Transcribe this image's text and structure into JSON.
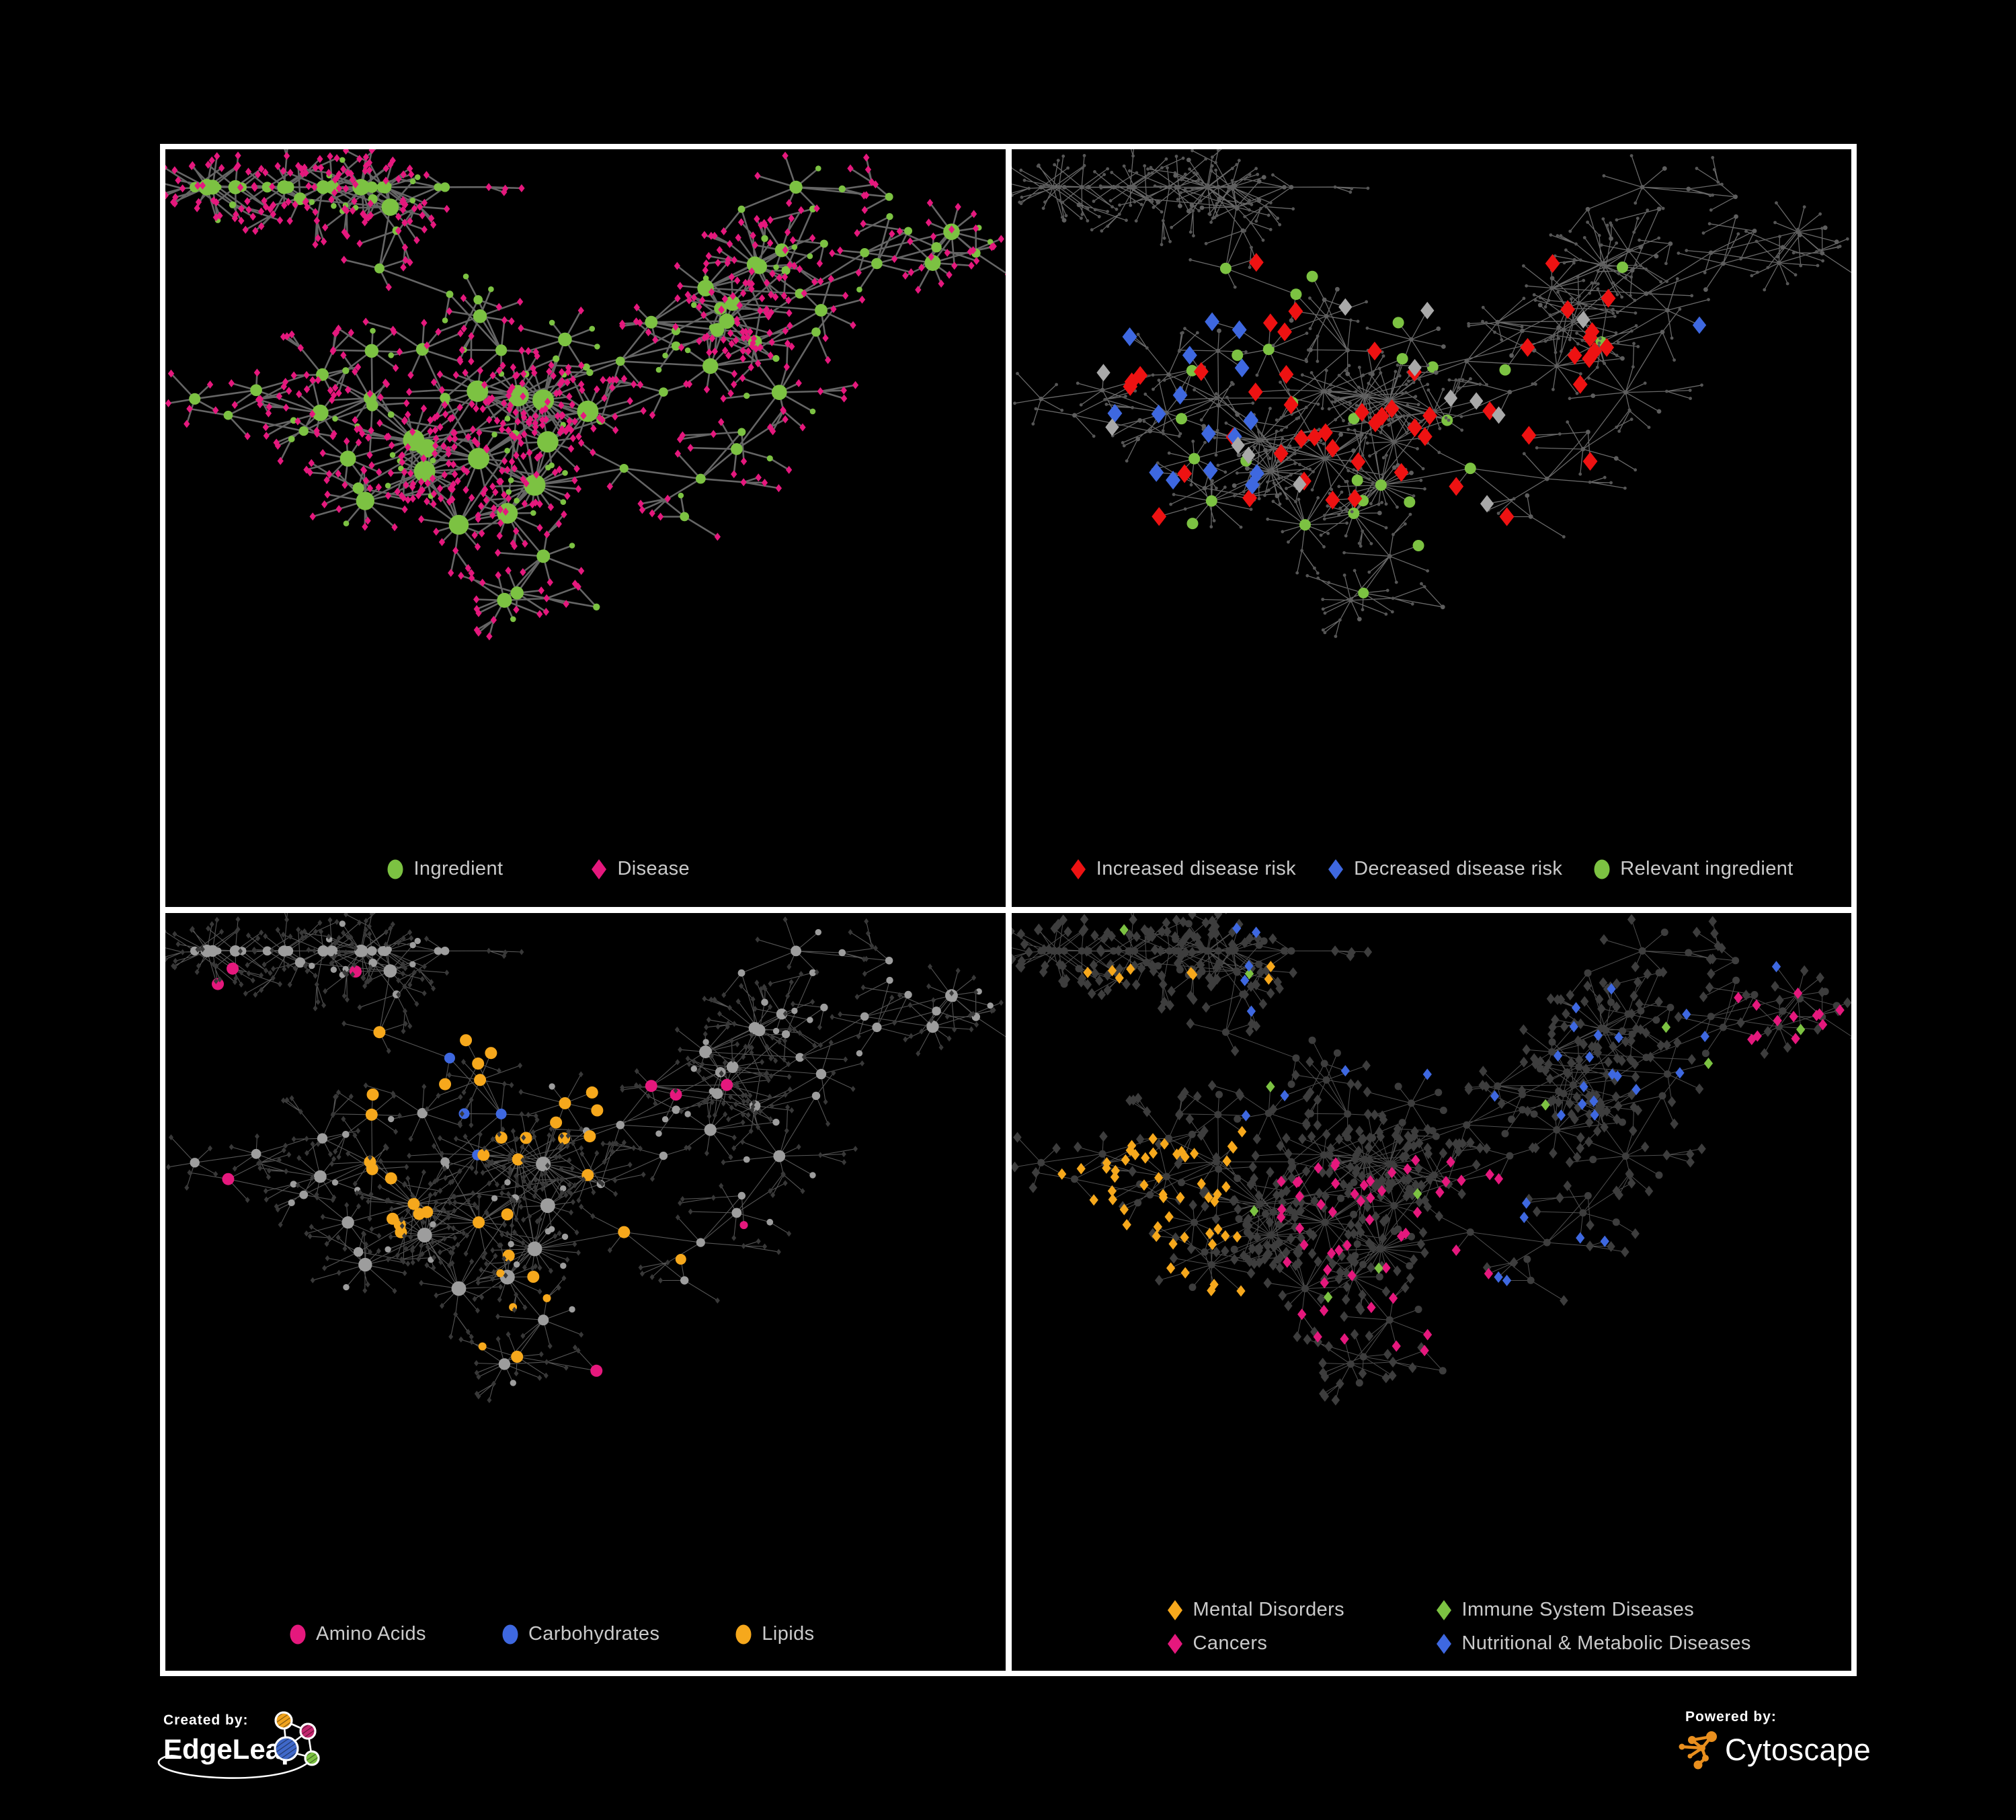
{
  "colors": {
    "green": "#7CC242",
    "magenta": "#E5187D",
    "red": "#EE1212",
    "blue": "#3E68E0",
    "orange": "#F6A81C",
    "gray_node": "#9D9D9D",
    "dim_node": "#5E5E5E",
    "dark_node": "#3D3D3D",
    "dark_diamond": "#383838",
    "gray_diamond": "#A9A9A9",
    "legend_text": "#CACACA",
    "frame_white": "#FFFFFF",
    "el_orange": "#F0A31D",
    "el_pink": "#C2266E",
    "el_blue": "#3F68C9",
    "el_green": "#7CC242",
    "cyto_orange": "#E98F1E"
  },
  "network": {
    "seed": 20,
    "core": [
      0.37,
      0.4
    ],
    "coreRadius": 0.13,
    "coreHubs": 13,
    "coreLeavesMin": 9,
    "coreLeavesMax": 24,
    "coreExtraEdges": 9,
    "tendrilHubs": 92,
    "stepMin": 0.045,
    "stepMax": 0.09,
    "bounds": [
      0.035,
      0.05,
      0.965,
      0.83
    ],
    "leafMin": 0.022,
    "leafMax": 0.045,
    "subBranchP": 0.15,
    "ingredientLeafP": 0.12
  },
  "panels": [
    {
      "name": "ingredient-disease-network",
      "edge": {
        "c": "#6A6A6A",
        "w": 2.6,
        "o": 0.95
      },
      "ingredient": {
        "s": "circle",
        "c": "green",
        "z": "hub"
      },
      "disease": {
        "s": "diamond",
        "c": "magenta",
        "z": 6
      },
      "rules": [],
      "legend": [
        {
          "label": "Ingredient",
          "shape": "circle",
          "color": "green"
        },
        {
          "label": "Disease",
          "shape": "diamond",
          "color": "magenta"
        }
      ]
    },
    {
      "name": "disease-risk-network",
      "edge": {
        "c": "#7A7A7A",
        "w": 1.3,
        "o": 0.85
      },
      "ingredient": {
        "s": "circle",
        "c": "#5E5E5E",
        "z": 3.4
      },
      "disease": {
        "s": "circle",
        "c": "#565656",
        "z": 2.4
      },
      "rules": [
        {
          "t": "disease",
          "rg": [
            0.8,
            0.2,
            0.96,
            0.31
          ],
          "p": 0.5,
          "s": "diamond",
          "c": "blue",
          "z": 13
        },
        {
          "t": "disease",
          "rg": [
            0.1,
            0.22,
            0.3,
            0.45
          ],
          "p": 0.16,
          "s": "diamond",
          "c": "blue",
          "z": 14
        },
        {
          "t": "disease",
          "rg": [
            0.12,
            0.14,
            0.72,
            0.52
          ],
          "p": 0.11,
          "s": "diamond",
          "c": "red",
          "z": 14
        },
        {
          "t": "disease",
          "rg": [
            0.7,
            0.38,
            0.95,
            0.75
          ],
          "p": 0.07,
          "s": "diamond",
          "c": "red",
          "z": 13
        },
        {
          "t": "disease",
          "rg": [
            0.1,
            0.15,
            0.75,
            0.55
          ],
          "p": 0.04,
          "s": "diamond",
          "c": "gray_diamond",
          "z": 13
        },
        {
          "t": "ingredient",
          "rg": [
            0.08,
            0.12,
            0.75,
            0.55
          ],
          "p": 0.32,
          "s": "circle",
          "c": "green",
          "z": 8.5
        },
        {
          "t": "ingredient",
          "rg": [
            0.0,
            0.5,
            1.0,
            0.9
          ],
          "p": 0.05,
          "s": "circle",
          "c": "green",
          "z": 8
        }
      ],
      "legend": [
        {
          "label": "Increased disease risk",
          "shape": "diamond",
          "color": "red"
        },
        {
          "label": "Decreased disease risk",
          "shape": "diamond",
          "color": "blue"
        },
        {
          "label": "Relevant ingredient",
          "shape": "circle",
          "color": "green"
        }
      ]
    },
    {
      "name": "ingredient-class-network",
      "edge": {
        "c": "#8E8E8E",
        "w": 1.1,
        "o": 0.6
      },
      "ingredient": {
        "s": "circle",
        "c": "gray_node",
        "z": "hub2"
      },
      "disease": {
        "s": "diamond",
        "c": "dark_diamond",
        "z": 4.5
      },
      "rules": [
        {
          "t": "ingredient",
          "rg": [
            0.3,
            0.18,
            0.44,
            0.34
          ],
          "p": 0.3,
          "s": "circle",
          "c": "blue",
          "z": 8
        },
        {
          "t": "ingredient",
          "rg": [
            0.24,
            0.1,
            0.55,
            0.42
          ],
          "p": 0.6,
          "s": "circle",
          "c": "orange",
          "z": 9
        },
        {
          "t": "ingredient",
          "rg": [
            0.28,
            0.4,
            0.62,
            0.72
          ],
          "p": 0.22,
          "s": "circle",
          "c": "orange",
          "z": 9
        },
        {
          "t": "ingredient",
          "rg": [
            0.6,
            0.45,
            0.9,
            0.8
          ],
          "p": 0.1,
          "s": "circle",
          "c": "orange",
          "z": 8
        },
        {
          "t": "ingredient",
          "rg": [
            0.0,
            0.0,
            1.0,
            1.0
          ],
          "p": 0.07,
          "s": "circle",
          "c": "magenta",
          "z": 9
        },
        {
          "t": "disease",
          "rg": [
            0.3,
            0.45,
            0.55,
            0.7
          ],
          "p": 0.05,
          "s": "circle",
          "c": "orange",
          "z": 6
        },
        {
          "t": "disease",
          "rg": [
            0.55,
            0.4,
            0.85,
            0.75
          ],
          "p": 0.03,
          "s": "circle",
          "c": "magenta",
          "z": 6
        }
      ],
      "legend": [
        {
          "label": "Amino Acids",
          "shape": "circle",
          "color": "magenta"
        },
        {
          "label": "Carbohydrates",
          "shape": "circle",
          "color": "blue"
        },
        {
          "label": "Lipids",
          "shape": "circle",
          "color": "orange"
        }
      ]
    },
    {
      "name": "disease-class-network",
      "edge": {
        "c": "#9E9E9E",
        "w": 1.0,
        "o": 0.5
      },
      "ingredient": {
        "s": "circle",
        "c": "dark_node",
        "z": 5.5
      },
      "disease": {
        "s": "diamond",
        "c": "dark_node",
        "z": 8
      },
      "rules": [
        {
          "t": "disease",
          "rg": [
            0.04,
            0.28,
            0.28,
            0.58
          ],
          "p": 0.62,
          "s": "diamond",
          "c": "orange",
          "z": 8.5
        },
        {
          "t": "disease",
          "rg": [
            0.05,
            0.05,
            0.35,
            0.22
          ],
          "p": 0.12,
          "s": "diamond",
          "c": "orange",
          "z": 8.5
        },
        {
          "t": "disease",
          "rg": [
            0.05,
            0.62,
            0.45,
            0.92
          ],
          "p": 0.06,
          "s": "diamond",
          "c": "orange",
          "z": 8.5
        },
        {
          "t": "disease",
          "rg": [
            0.85,
            0.1,
            0.99,
            0.3
          ],
          "p": 0.45,
          "s": "diamond",
          "c": "magenta",
          "z": 8.5
        },
        {
          "t": "disease",
          "rg": [
            0.32,
            0.32,
            0.6,
            0.6
          ],
          "p": 0.28,
          "s": "diamond",
          "c": "magenta",
          "z": 8.5
        },
        {
          "t": "disease",
          "rg": [
            0.3,
            0.58,
            0.72,
            0.88
          ],
          "p": 0.05,
          "s": "diamond",
          "c": "magenta",
          "z": 8.5
        },
        {
          "t": "disease",
          "rg": [
            0.55,
            0.36,
            0.74,
            0.58
          ],
          "p": 0.38,
          "s": "diamond",
          "c": "blue",
          "z": 8.5
        },
        {
          "t": "disease",
          "rg": [
            0.25,
            0.02,
            0.7,
            0.28
          ],
          "p": 0.14,
          "s": "diamond",
          "c": "blue",
          "z": 8.5
        },
        {
          "t": "disease",
          "rg": [
            0.7,
            0.05,
            0.99,
            0.4
          ],
          "p": 0.16,
          "s": "diamond",
          "c": "blue",
          "z": 8.5
        },
        {
          "t": "disease",
          "rg": [
            0.08,
            0.55,
            0.6,
            0.95
          ],
          "p": 0.05,
          "s": "diamond",
          "c": "blue",
          "z": 8.5
        },
        {
          "t": "disease",
          "rg": [
            0.0,
            0.0,
            1.0,
            1.0
          ],
          "p": 0.018,
          "s": "diamond",
          "c": "green",
          "z": 8.5
        }
      ],
      "legend": [
        {
          "label": "Mental Disorders",
          "shape": "diamond",
          "color": "orange"
        },
        {
          "label": "Immune System Diseases",
          "shape": "diamond",
          "color": "green"
        },
        {
          "label": "Cancers",
          "shape": "diamond",
          "color": "magenta"
        },
        {
          "label": "Nutritional & Metabolic Diseases",
          "shape": "diamond",
          "color": "blue"
        }
      ]
    }
  ],
  "footer": {
    "created_by": "Created by:",
    "brand": "EdgeLeap",
    "powered_by": "Powered by:",
    "engine": "Cytoscape"
  }
}
